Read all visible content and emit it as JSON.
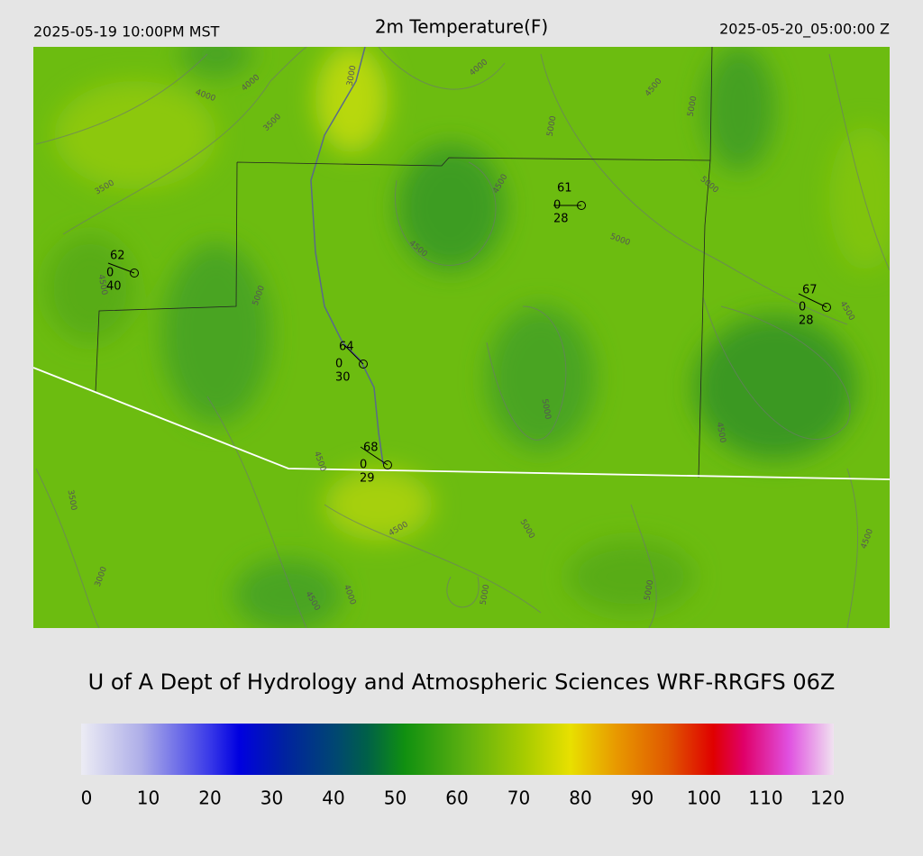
{
  "header": {
    "valid_local": "2025-05-19 10:00PM MST",
    "title": "2m Temperature(F)",
    "valid_utc": "2025-05-20_05:00:00 Z"
  },
  "map": {
    "stations": [
      {
        "temp": "62",
        "dewpoint": "40",
        "cloud": "0"
      },
      {
        "temp": "61",
        "dewpoint": "28",
        "cloud": "0"
      },
      {
        "temp": "67",
        "dewpoint": "28",
        "cloud": "0"
      },
      {
        "temp": "64",
        "dewpoint": "30",
        "cloud": "0"
      },
      {
        "temp": "68",
        "dewpoint": "29",
        "cloud": "0"
      }
    ],
    "contour_labels": [
      "4000",
      "4000",
      "3000",
      "3500",
      "4000",
      "4500",
      "5000",
      "5000",
      "4000",
      "3500",
      "4500",
      "4500",
      "4500",
      "5000",
      "5000",
      "4500",
      "5000",
      "5000",
      "4500",
      "3500",
      "4500",
      "4500",
      "3000",
      "4000",
      "4500",
      "5000",
      "5000",
      "5000",
      "4500"
    ]
  },
  "footer": {
    "credit": "U of A Dept of Hydrology and Atmospheric Sciences WRF-RRGFS 06Z"
  },
  "colorbar": {
    "ticks": [
      "0",
      "10",
      "20",
      "30",
      "40",
      "50",
      "60",
      "70",
      "80",
      "90",
      "100",
      "110",
      "120"
    ]
  }
}
